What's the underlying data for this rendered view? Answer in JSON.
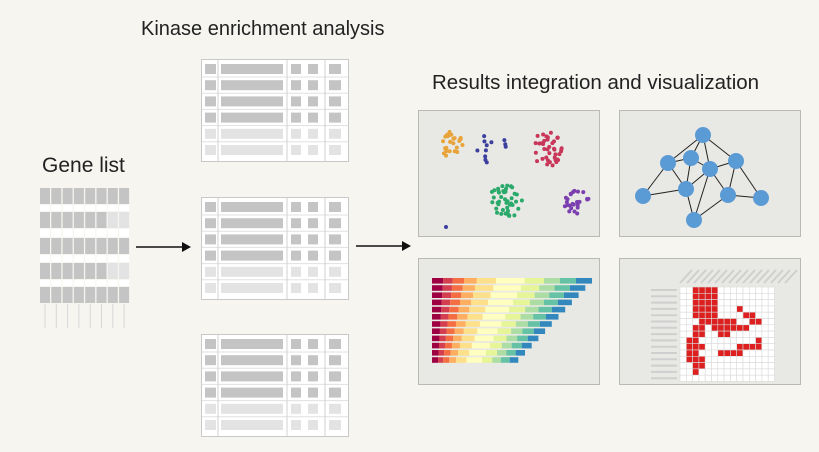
{
  "gene_list": {
    "title": "Gene list"
  },
  "kinase_analysis": {
    "title": "Kinase enrichment analysis"
  },
  "results": {
    "title": "Results integration and visualization"
  },
  "colors": {
    "background": "#f6f5f0",
    "table_dark": "#c4c4c4",
    "table_light": "#e3e3e3",
    "panel_bg": "#e8e8e4",
    "scatter_orange": "#e8a33a",
    "scatter_navy": "#3b3f9e",
    "scatter_crimson": "#c8365a",
    "scatter_green": "#2aaa6a",
    "scatter_purple": "#7b3fb0",
    "network_node": "#5b9bd5",
    "heatmap_red": "#dd1f1f",
    "spectral": [
      "#9e0142",
      "#d53e4f",
      "#f46d43",
      "#fdae61",
      "#fee08b",
      "#ffffbf",
      "#e6f598",
      "#abdda4",
      "#66c2a5",
      "#3288bd"
    ]
  },
  "icons": [
    "arrow-right-icon",
    "arrow-right-icon"
  ]
}
